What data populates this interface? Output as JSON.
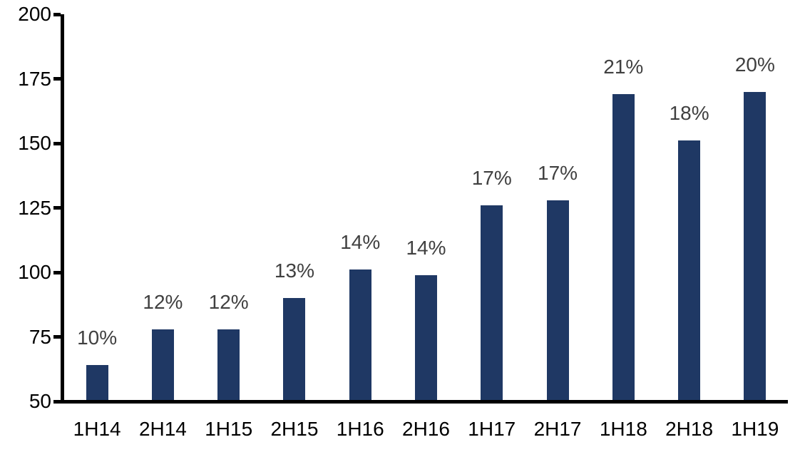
{
  "chart_data": {
    "type": "bar",
    "title": "",
    "xlabel": "",
    "ylabel": "",
    "categories": [
      "1H14",
      "2H14",
      "1H15",
      "2H15",
      "1H16",
      "2H16",
      "1H17",
      "2H17",
      "1H18",
      "2H18",
      "1H19"
    ],
    "values": [
      64,
      78,
      78,
      90,
      101,
      99,
      126,
      128,
      169,
      151,
      170
    ],
    "data_labels": [
      "10%",
      "12%",
      "12%",
      "13%",
      "14%",
      "14%",
      "17%",
      "17%",
      "21%",
      "18%",
      "20%"
    ],
    "ylim": [
      50,
      200
    ],
    "yticks": [
      50,
      75,
      100,
      125,
      150,
      175,
      200
    ],
    "grid": false,
    "legend": "none",
    "colors": {
      "bar": "#1f3864",
      "data_label": "#404040",
      "axis": "#000000",
      "tick_label": "#000000",
      "background": "#ffffff"
    }
  }
}
